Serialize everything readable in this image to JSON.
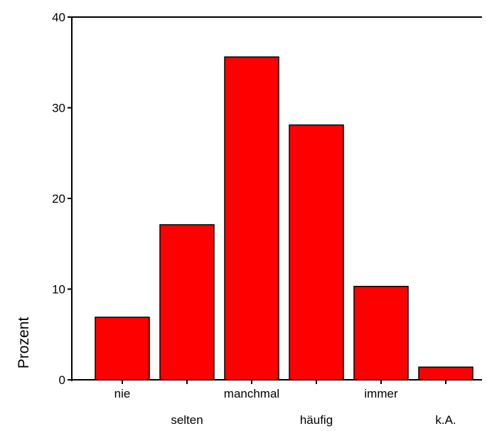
{
  "chart_data": {
    "type": "bar",
    "categories": [
      "nie",
      "selten",
      "manchmal",
      "häufig",
      "immer",
      "k.A."
    ],
    "values": [
      6.9,
      17.1,
      35.6,
      28.1,
      10.3,
      1.4
    ],
    "ylabel": "Prozent",
    "ylim": [
      0,
      40
    ],
    "yticks": [
      0,
      10,
      20,
      30,
      40
    ],
    "bar_color": "#ff0000",
    "axis_color": "#000000",
    "grid": false
  }
}
